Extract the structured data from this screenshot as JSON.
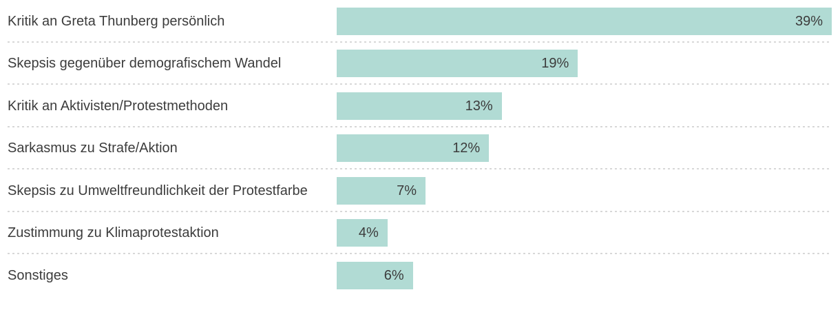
{
  "chart_data": {
    "type": "bar",
    "orientation": "horizontal",
    "title": "",
    "xlabel": "",
    "ylabel": "",
    "xlim": [
      0,
      39
    ],
    "grid": false,
    "legend": false,
    "categories": [
      "Kritik an Greta Thunberg persönlich",
      "Skepsis gegenüber demografischem Wandel",
      "Kritik an Aktivisten/Protestmethoden",
      "Sarkasmus zu Strafe/Aktion",
      "Skepsis zu Umweltfreundlichkeit der Protestfarbe",
      "Zustimmung zu Klimaprotestaktion",
      "Sonstiges"
    ],
    "values": [
      39,
      19,
      13,
      12,
      7,
      4,
      6
    ],
    "value_labels": [
      "39%",
      "19%",
      "13%",
      "12%",
      "7%",
      "4%",
      "6%"
    ],
    "unit": "%",
    "colors": {
      "bar": "#b1dbd4",
      "text": "#3c3c3c",
      "separator": "#d7d7d7",
      "background": "#ffffff"
    }
  }
}
